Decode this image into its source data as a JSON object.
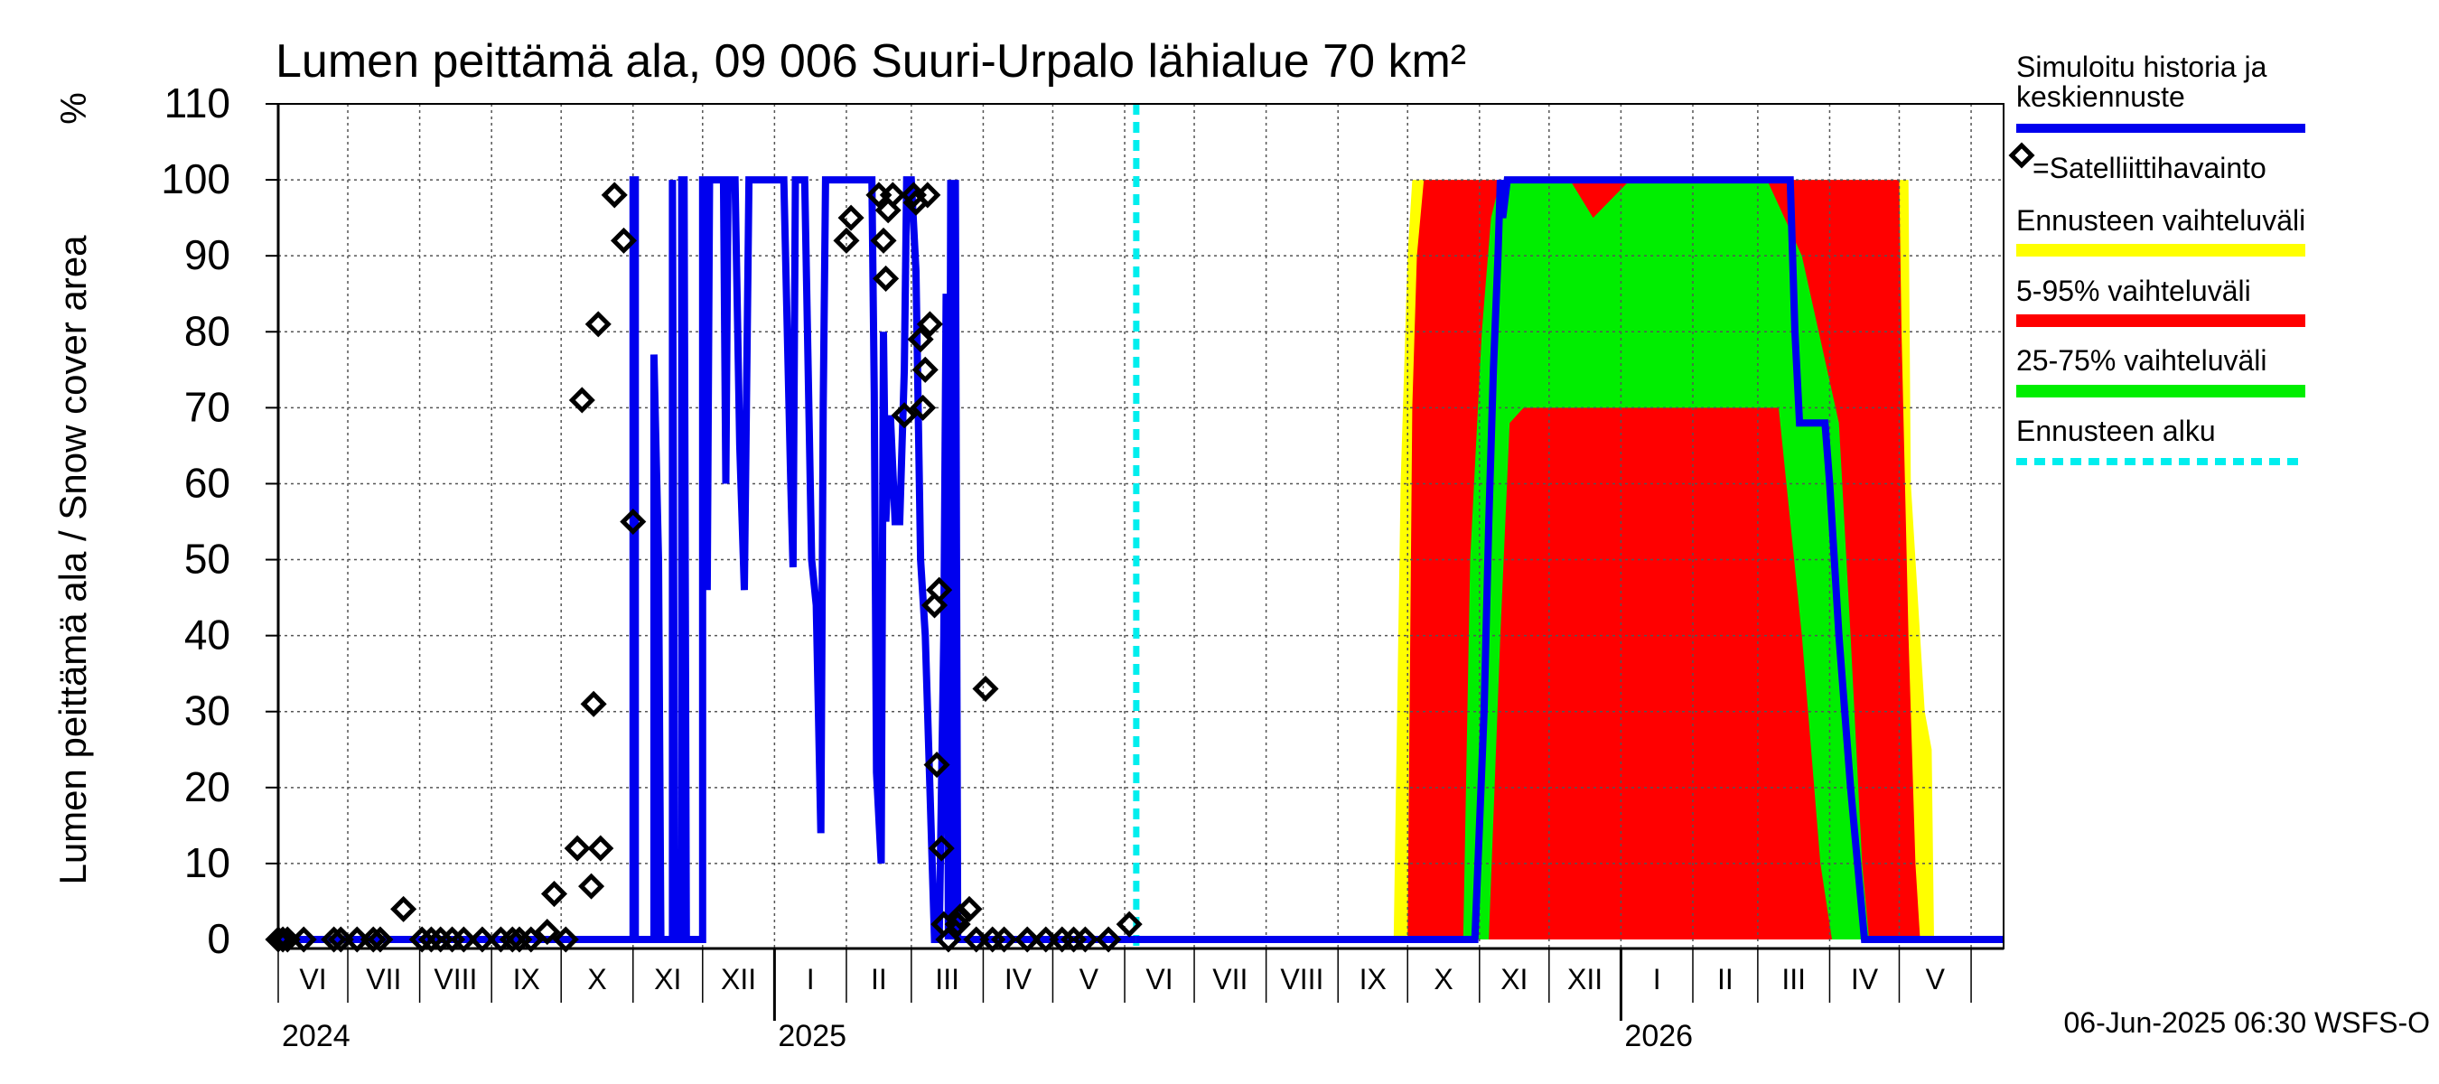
{
  "chart_data": {
    "type": "line",
    "title": "Lumen peittämä ala, 09 006 Suuri-Urpalo lähialue 70 km²",
    "ylabel": "Lumen peittämä ala / Snow cover area",
    "yunit": "%",
    "ylim": [
      0,
      110
    ],
    "yticks": [
      0,
      10,
      20,
      30,
      40,
      50,
      60,
      70,
      80,
      90,
      100,
      110
    ],
    "grid": true,
    "legend_position": "right",
    "x_range": [
      "2024-06-01",
      "2026-06-15"
    ],
    "forecast_start": "2025-06-06",
    "timestamp": "06-Jun-2025 06:30 WSFS-O",
    "months": [
      {
        "label": "VI",
        "start": "2024-06-01"
      },
      {
        "label": "VII",
        "start": "2024-07-01"
      },
      {
        "label": "VIII",
        "start": "2024-08-01"
      },
      {
        "label": "IX",
        "start": "2024-09-01"
      },
      {
        "label": "X",
        "start": "2024-10-01"
      },
      {
        "label": "XI",
        "start": "2024-11-01"
      },
      {
        "label": "XII",
        "start": "2024-12-01"
      },
      {
        "label": "I",
        "start": "2025-01-01"
      },
      {
        "label": "II",
        "start": "2025-02-01"
      },
      {
        "label": "III",
        "start": "2025-03-01"
      },
      {
        "label": "IV",
        "start": "2025-04-01"
      },
      {
        "label": "V",
        "start": "2025-05-01"
      },
      {
        "label": "VI",
        "start": "2025-06-01"
      },
      {
        "label": "VII",
        "start": "2025-07-01"
      },
      {
        "label": "VIII",
        "start": "2025-08-01"
      },
      {
        "label": "IX",
        "start": "2025-09-01"
      },
      {
        "label": "X",
        "start": "2025-10-01"
      },
      {
        "label": "XI",
        "start": "2025-11-01"
      },
      {
        "label": "XII",
        "start": "2025-12-01"
      },
      {
        "label": "I",
        "start": "2026-01-01"
      },
      {
        "label": "II",
        "start": "2026-02-01"
      },
      {
        "label": "III",
        "start": "2026-03-01"
      },
      {
        "label": "IV",
        "start": "2026-04-01"
      },
      {
        "label": "V",
        "start": "2026-05-01"
      },
      {
        "label": "",
        "start": "2026-06-01"
      }
    ],
    "years": [
      {
        "label": "2024",
        "date": "2024-06-01"
      },
      {
        "label": "2025",
        "date": "2025-01-01"
      },
      {
        "label": "2026",
        "date": "2026-01-01"
      }
    ],
    "legend": [
      {
        "label": "Simuloitu historia ja keskiennuste",
        "color": "#0000ee",
        "kind": "line"
      },
      {
        "label": "=Satelliittihavainto",
        "color": "#000000",
        "kind": "marker"
      },
      {
        "label": "Ennusteen vaihteluväli",
        "color": "#ffff00",
        "kind": "band"
      },
      {
        "label": "5-95% vaihteluväli",
        "color": "#ff0000",
        "kind": "band"
      },
      {
        "label": "25-75% vaihteluväli",
        "color": "#00ee00",
        "kind": "band"
      },
      {
        "label": "Ennusteen alku",
        "color": "#00eeee",
        "kind": "dashed"
      }
    ],
    "series": [
      {
        "name": "Simuloitu historia ja keskiennuste",
        "color": "#0000ee",
        "points": [
          [
            "2024-06-01",
            0
          ],
          [
            "2024-11-01",
            0
          ],
          [
            "2024-11-01",
            100
          ],
          [
            "2024-11-02",
            100
          ],
          [
            "2024-11-02",
            0
          ],
          [
            "2024-11-10",
            0
          ],
          [
            "2024-11-10",
            77
          ],
          [
            "2024-11-12",
            50
          ],
          [
            "2024-11-13",
            0
          ],
          [
            "2024-11-18",
            0
          ],
          [
            "2024-11-18",
            100
          ],
          [
            "2024-11-19",
            0
          ],
          [
            "2024-11-22",
            0
          ],
          [
            "2024-11-22",
            100
          ],
          [
            "2024-11-23",
            100
          ],
          [
            "2024-11-24",
            0
          ],
          [
            "2024-12-01",
            0
          ],
          [
            "2024-12-01",
            100
          ],
          [
            "2024-12-02",
            100
          ],
          [
            "2024-12-03",
            46
          ],
          [
            "2024-12-04",
            100
          ],
          [
            "2024-12-10",
            100
          ],
          [
            "2024-12-11",
            60
          ],
          [
            "2024-12-12",
            100
          ],
          [
            "2024-12-15",
            100
          ],
          [
            "2024-12-17",
            65
          ],
          [
            "2024-12-19",
            46
          ],
          [
            "2024-12-21",
            100
          ],
          [
            "2025-01-05",
            100
          ],
          [
            "2025-01-08",
            60
          ],
          [
            "2025-01-09",
            49
          ],
          [
            "2025-01-10",
            100
          ],
          [
            "2025-01-14",
            100
          ],
          [
            "2025-01-17",
            50
          ],
          [
            "2025-01-19",
            44
          ],
          [
            "2025-01-21",
            14
          ],
          [
            "2025-01-22",
            70
          ],
          [
            "2025-01-23",
            100
          ],
          [
            "2025-02-12",
            100
          ],
          [
            "2025-02-13",
            72
          ],
          [
            "2025-02-14",
            22
          ],
          [
            "2025-02-16",
            10
          ],
          [
            "2025-02-17",
            80
          ],
          [
            "2025-02-18",
            55
          ],
          [
            "2025-02-20",
            69
          ],
          [
            "2025-02-22",
            55
          ],
          [
            "2025-02-24",
            55
          ],
          [
            "2025-02-26",
            75
          ],
          [
            "2025-02-27",
            100
          ],
          [
            "2025-03-01",
            100
          ],
          [
            "2025-03-03",
            88
          ],
          [
            "2025-03-05",
            50
          ],
          [
            "2025-03-07",
            40
          ],
          [
            "2025-03-09",
            20
          ],
          [
            "2025-03-11",
            0
          ],
          [
            "2025-03-13",
            0
          ],
          [
            "2025-03-15",
            40
          ],
          [
            "2025-03-16",
            85
          ],
          [
            "2025-03-17",
            0
          ],
          [
            "2025-03-18",
            100
          ],
          [
            "2025-03-19",
            0
          ],
          [
            "2025-03-20",
            100
          ],
          [
            "2025-03-21",
            0
          ],
          [
            "2025-03-23",
            0
          ],
          [
            "2025-06-06",
            0
          ]
        ]
      },
      {
        "name": "Keskiennuste",
        "color": "#0000ee",
        "points": [
          [
            "2025-06-06",
            0
          ],
          [
            "2025-10-30",
            0
          ],
          [
            "2025-11-03",
            30
          ],
          [
            "2025-11-05",
            55
          ],
          [
            "2025-11-07",
            75
          ],
          [
            "2025-11-09",
            90
          ],
          [
            "2025-11-10",
            100
          ],
          [
            "2025-11-11",
            95
          ],
          [
            "2025-11-13",
            100
          ],
          [
            "2026-03-15",
            100
          ],
          [
            "2026-03-17",
            80
          ],
          [
            "2026-03-19",
            68
          ],
          [
            "2026-03-30",
            68
          ],
          [
            "2026-04-01",
            60
          ],
          [
            "2026-04-05",
            40
          ],
          [
            "2026-04-10",
            20
          ],
          [
            "2026-04-16",
            0
          ],
          [
            "2026-06-15",
            0
          ]
        ]
      }
    ],
    "bands": [
      {
        "name": "Ennusteen vaihteluväli",
        "color": "#ffff00",
        "upper": [
          [
            "2025-09-25",
            0
          ],
          [
            "2025-09-28",
            60
          ],
          [
            "2025-10-01",
            90
          ],
          [
            "2025-10-03",
            100
          ],
          [
            "2026-04-25",
            100
          ],
          [
            "2026-05-05",
            100
          ],
          [
            "2026-05-06",
            60
          ],
          [
            "2026-05-12",
            30
          ],
          [
            "2026-05-15",
            25
          ],
          [
            "2026-05-16",
            0
          ]
        ],
        "lower": [
          [
            "2025-09-25",
            0
          ],
          [
            "2026-03-20",
            0
          ],
          [
            "2026-05-16",
            0
          ]
        ]
      },
      {
        "name": "5-95% vaihteluväli",
        "color": "#ff0000",
        "upper": [
          [
            "2025-10-01",
            0
          ],
          [
            "2025-10-03",
            70
          ],
          [
            "2025-10-05",
            90
          ],
          [
            "2025-10-08",
            100
          ],
          [
            "2026-05-01",
            100
          ],
          [
            "2026-05-02",
            80
          ],
          [
            "2026-05-05",
            40
          ],
          [
            "2026-05-08",
            10
          ],
          [
            "2026-05-10",
            0
          ]
        ],
        "lower": [
          [
            "2025-10-01",
            0
          ],
          [
            "2026-05-10",
            0
          ]
        ]
      },
      {
        "name": "25-75% vaihteluväli",
        "color": "#00ee00",
        "upper": [
          [
            "2025-10-25",
            0
          ],
          [
            "2025-10-28",
            50
          ],
          [
            "2025-11-02",
            80
          ],
          [
            "2025-11-06",
            95
          ],
          [
            "2025-11-10",
            100
          ],
          [
            "2025-12-10",
            100
          ],
          [
            "2025-12-20",
            95
          ],
          [
            "2026-01-05",
            100
          ],
          [
            "2026-03-05",
            100
          ],
          [
            "2026-03-20",
            90
          ],
          [
            "2026-04-05",
            68
          ],
          [
            "2026-04-10",
            40
          ],
          [
            "2026-04-15",
            10
          ],
          [
            "2026-04-18",
            0
          ]
        ],
        "lower": [
          [
            "2025-10-25",
            0
          ],
          [
            "2025-11-05",
            0
          ],
          [
            "2025-11-10",
            40
          ],
          [
            "2025-11-14",
            68
          ],
          [
            "2025-11-20",
            70
          ],
          [
            "2026-03-10",
            70
          ],
          [
            "2026-03-20",
            40
          ],
          [
            "2026-03-28",
            10
          ],
          [
            "2026-04-02",
            0
          ],
          [
            "2026-04-18",
            0
          ]
        ]
      }
    ],
    "satellite_observations": [
      [
        "2024-06-01",
        0
      ],
      [
        "2024-06-03",
        0
      ],
      [
        "2024-06-05",
        0
      ],
      [
        "2024-06-12",
        0
      ],
      [
        "2024-06-25",
        0
      ],
      [
        "2024-06-28",
        0
      ],
      [
        "2024-07-05",
        0
      ],
      [
        "2024-07-12",
        0
      ],
      [
        "2024-07-15",
        0
      ],
      [
        "2024-07-25",
        4
      ],
      [
        "2024-08-02",
        0
      ],
      [
        "2024-08-06",
        0
      ],
      [
        "2024-08-10",
        0
      ],
      [
        "2024-08-15",
        0
      ],
      [
        "2024-08-20",
        0
      ],
      [
        "2024-08-28",
        0
      ],
      [
        "2024-09-05",
        0
      ],
      [
        "2024-09-10",
        0
      ],
      [
        "2024-09-13",
        0
      ],
      [
        "2024-09-18",
        0
      ],
      [
        "2024-09-25",
        1
      ],
      [
        "2024-09-28",
        6
      ],
      [
        "2024-10-03",
        0
      ],
      [
        "2024-10-08",
        12
      ],
      [
        "2024-10-10",
        71
      ],
      [
        "2024-10-14",
        7
      ],
      [
        "2024-10-15",
        31
      ],
      [
        "2024-10-17",
        81
      ],
      [
        "2024-10-18",
        12
      ],
      [
        "2024-10-24",
        98
      ],
      [
        "2024-10-28",
        92
      ],
      [
        "2024-11-01",
        55
      ],
      [
        "2025-02-01",
        92
      ],
      [
        "2025-02-03",
        95
      ],
      [
        "2025-02-15",
        98
      ],
      [
        "2025-02-17",
        92
      ],
      [
        "2025-02-18",
        87
      ],
      [
        "2025-02-19",
        96
      ],
      [
        "2025-02-21",
        98
      ],
      [
        "2025-02-26",
        69
      ],
      [
        "2025-03-02",
        98
      ],
      [
        "2025-03-03",
        97
      ],
      [
        "2025-03-05",
        79
      ],
      [
        "2025-03-06",
        70
      ],
      [
        "2025-03-07",
        75
      ],
      [
        "2025-03-08",
        98
      ],
      [
        "2025-03-09",
        81
      ],
      [
        "2025-03-11",
        44
      ],
      [
        "2025-03-12",
        23
      ],
      [
        "2025-03-13",
        46
      ],
      [
        "2025-03-14",
        12
      ],
      [
        "2025-03-15",
        2
      ],
      [
        "2025-03-17",
        0
      ],
      [
        "2025-03-21",
        2
      ],
      [
        "2025-03-22",
        3
      ],
      [
        "2025-03-26",
        4
      ],
      [
        "2025-03-29",
        0
      ],
      [
        "2025-04-02",
        33
      ],
      [
        "2025-04-05",
        0
      ],
      [
        "2025-04-10",
        0
      ],
      [
        "2025-04-20",
        0
      ],
      [
        "2025-04-28",
        0
      ],
      [
        "2025-05-05",
        0
      ],
      [
        "2025-05-10",
        0
      ],
      [
        "2025-05-15",
        0
      ],
      [
        "2025-05-25",
        0
      ],
      [
        "2025-06-03",
        2
      ]
    ]
  }
}
